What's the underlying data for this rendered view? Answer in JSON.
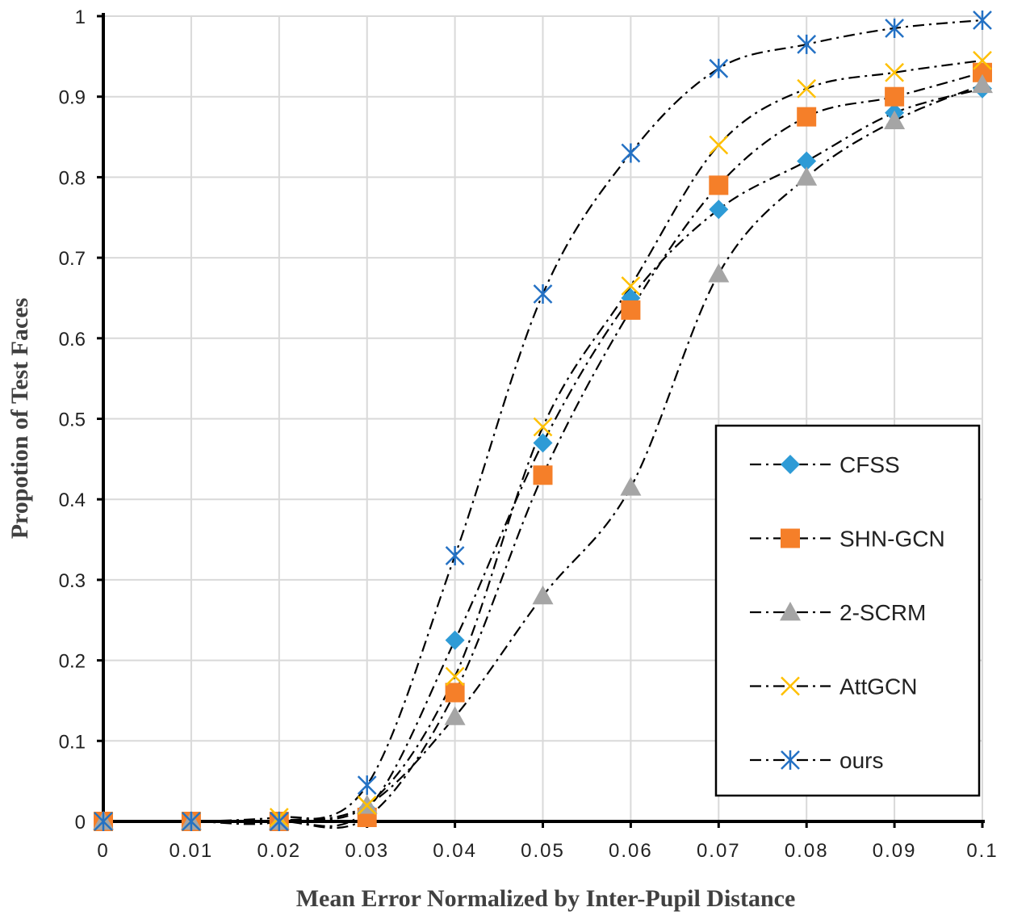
{
  "chart_data": {
    "type": "line",
    "title": "",
    "xlabel": "Mean Error Normalized by Inter-Pupil Distance",
    "ylabel": "Propotion of Test Faces",
    "xlim": [
      0,
      0.1
    ],
    "ylim": [
      0,
      1
    ],
    "grid": true,
    "legend_position": "right-lower",
    "x": [
      0,
      0.01,
      0.02,
      0.03,
      0.04,
      0.05,
      0.06,
      0.07,
      0.08,
      0.09,
      0.1
    ],
    "x_tick_labels": [
      "0",
      "0.01",
      "0.02",
      "0.03",
      "0.04",
      "0.05",
      "0.06",
      "0.07",
      "0.08",
      "0.09",
      "0.1"
    ],
    "y_tick_labels": [
      "0",
      "0.1",
      "0.2",
      "0.3",
      "0.4",
      "0.5",
      "0.6",
      "0.7",
      "0.8",
      "0.9",
      "1"
    ],
    "series": [
      {
        "name": "CFSS",
        "marker": "diamond",
        "color": "#2E9BD6",
        "values": [
          0,
          0,
          0,
          0.015,
          0.225,
          0.47,
          0.65,
          0.76,
          0.82,
          0.88,
          0.91
        ]
      },
      {
        "name": "SHN-GCN",
        "marker": "square",
        "color": "#F57F29",
        "values": [
          0,
          0,
          0,
          0.005,
          0.16,
          0.43,
          0.635,
          0.79,
          0.875,
          0.9,
          0.93
        ]
      },
      {
        "name": "2-SCRM",
        "marker": "triangle",
        "color": "#A5A5A5",
        "values": [
          0,
          0,
          0,
          0.02,
          0.13,
          0.28,
          0.415,
          0.68,
          0.8,
          0.87,
          0.915
        ]
      },
      {
        "name": "AttGCN",
        "marker": "x",
        "color": "#FFC000",
        "values": [
          0,
          0,
          0.005,
          0.02,
          0.18,
          0.49,
          0.665,
          0.84,
          0.91,
          0.93,
          0.945
        ]
      },
      {
        "name": "ours",
        "marker": "asterisk",
        "color": "#2471C4",
        "values": [
          0,
          0,
          0,
          0.045,
          0.33,
          0.655,
          0.83,
          0.935,
          0.965,
          0.985,
          0.995
        ]
      }
    ]
  }
}
